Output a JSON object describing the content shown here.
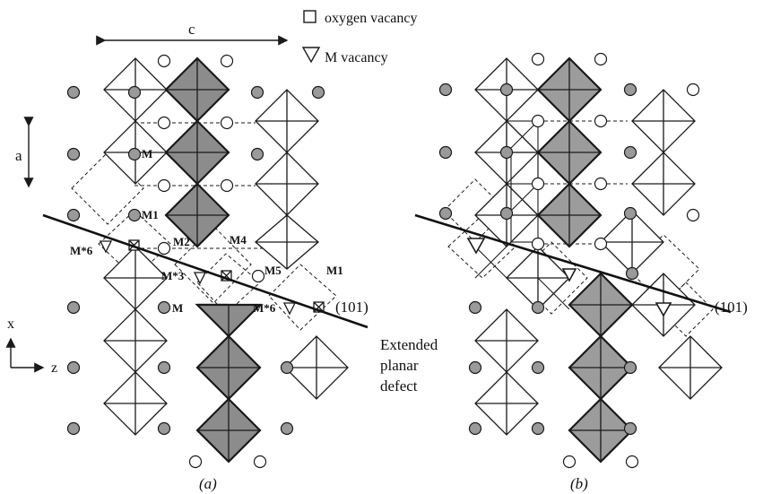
{
  "legend": {
    "oxygen_vacancy": "oxygen vacancy",
    "m_vacancy": "M vacancy"
  },
  "axes": {
    "c_label": "c",
    "a_label": "a",
    "x_label": "x",
    "z_label": "z"
  },
  "panel_a": {
    "caption": "(a)",
    "sites": {
      "m_top": "M",
      "m1_top": "M1",
      "m6_left": "M*6",
      "m2": "M2",
      "m4": "M4",
      "m3": "M*3",
      "m5": "M5",
      "m1_right": "M1",
      "m_bottom": "M",
      "m6_right": "M*6"
    },
    "plane_label": "(101)",
    "defect_label_line1": "Extended",
    "defect_label_line2": "planar",
    "defect_label_line3": "defect"
  },
  "panel_b": {
    "caption": "(b)",
    "plane_label": "(101)"
  },
  "colors": {
    "stroke": "#1a1a1a",
    "shaded_octahedron": "#8c8c8c",
    "grey_atom": "#9a9a9a",
    "white_atom": "#ffffff"
  }
}
